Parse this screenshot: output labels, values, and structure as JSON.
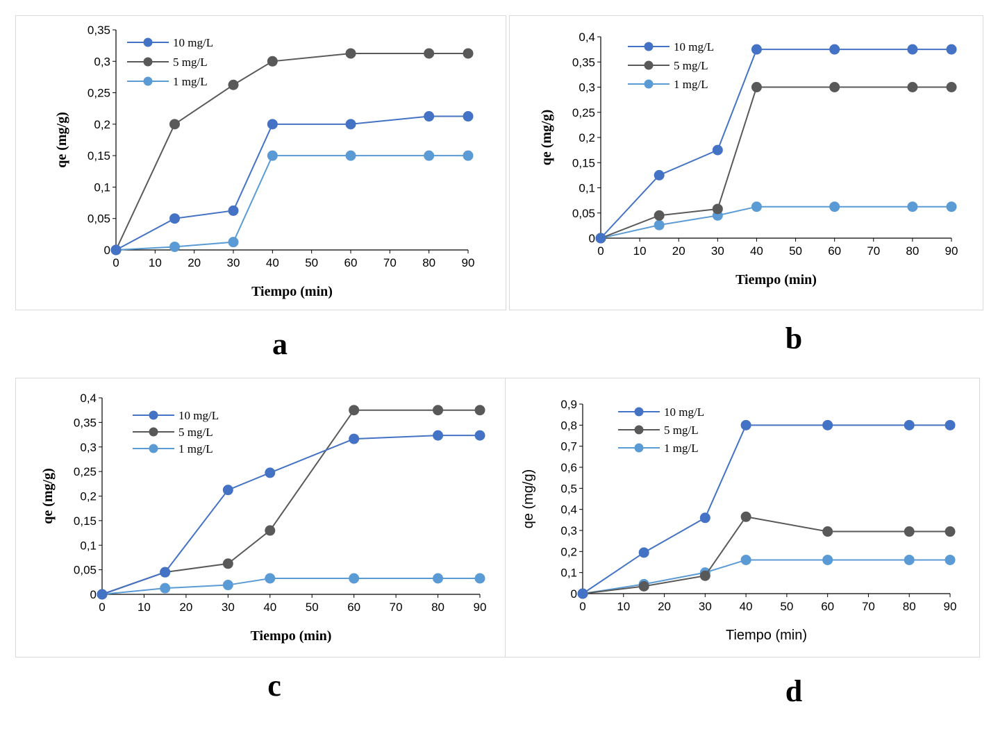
{
  "colors": {
    "series_10": "#4472c4",
    "series_5": "#595959",
    "series_1": "#5b9bd5",
    "axis": "#000000",
    "panel_border": "#d9d9d9"
  },
  "chart_data": [
    {
      "panel_letter": "a",
      "type": "line",
      "xlabel": "Tiempo (min)",
      "ylabel": "qe (mg/g)",
      "xlim": [
        0,
        90
      ],
      "x_ticks": [
        "0",
        "10",
        "20",
        "30",
        "40",
        "50",
        "60",
        "70",
        "80",
        "90"
      ],
      "ylim": [
        0,
        0.35
      ],
      "y_ticks": [
        "0",
        "0,05",
        "0,1",
        "0,15",
        "0,2",
        "0,25",
        "0,3",
        "0,35"
      ],
      "legend_position": "top-left",
      "grid": false,
      "series": [
        {
          "name": "10 mg/L",
          "x": [
            0,
            15,
            30,
            40,
            60,
            80,
            90
          ],
          "y": [
            0,
            0.05,
            0.0625,
            0.2,
            0.2,
            0.2125,
            0.2125
          ]
        },
        {
          "name": "5 mg/L",
          "x": [
            0,
            15,
            30,
            40,
            60,
            80,
            90
          ],
          "y": [
            0,
            0.2,
            0.2625,
            0.3,
            0.3125,
            0.3125,
            0.3125
          ]
        },
        {
          "name": "1 mg/L",
          "x": [
            0,
            15,
            30,
            40,
            60,
            80,
            90
          ],
          "y": [
            0,
            0.005,
            0.0125,
            0.15,
            0.15,
            0.15,
            0.15
          ]
        }
      ]
    },
    {
      "panel_letter": "b",
      "type": "line",
      "xlabel": "Tiempo (min)",
      "ylabel": "qe (mg/g)",
      "xlim": [
        0,
        90
      ],
      "x_ticks": [
        "0",
        "10",
        "20",
        "30",
        "40",
        "50",
        "60",
        "70",
        "80",
        "90"
      ],
      "ylim": [
        0,
        0.4
      ],
      "y_ticks": [
        "0",
        "0,05",
        "0,1",
        "0,15",
        "0,2",
        "0,25",
        "0,3",
        "0,35",
        "0,4"
      ],
      "legend_position": "top-left",
      "grid": false,
      "series": [
        {
          "name": "10 mg/L",
          "x": [
            0,
            15,
            30,
            40,
            60,
            80,
            90
          ],
          "y": [
            0,
            0.125,
            0.175,
            0.375,
            0.375,
            0.375,
            0.375
          ]
        },
        {
          "name": "5 mg/L",
          "x": [
            0,
            15,
            30,
            40,
            60,
            80,
            90
          ],
          "y": [
            0,
            0.045,
            0.058,
            0.3,
            0.3,
            0.3,
            0.3
          ]
        },
        {
          "name": "1 mg/L",
          "x": [
            0,
            15,
            30,
            40,
            60,
            80,
            90
          ],
          "y": [
            0,
            0.026,
            0.045,
            0.0625,
            0.0625,
            0.0625,
            0.0625
          ]
        }
      ]
    },
    {
      "panel_letter": "c",
      "type": "line",
      "xlabel": "Tiempo (min)",
      "ylabel": "qe (mg/g)",
      "xlim": [
        0,
        90
      ],
      "x_ticks": [
        "0",
        "10",
        "20",
        "30",
        "40",
        "50",
        "60",
        "70",
        "80",
        "90"
      ],
      "ylim": [
        0,
        0.4
      ],
      "y_ticks": [
        "0",
        "0,05",
        "0,1",
        "0,15",
        "0,2",
        "0,25",
        "0,3",
        "0,35",
        "0,4"
      ],
      "legend_position": "top-left",
      "grid": false,
      "series": [
        {
          "name": "10 mg/L",
          "x": [
            0,
            15,
            30,
            40,
            60,
            80,
            90
          ],
          "y": [
            0,
            0.045,
            0.2125,
            0.2475,
            0.3165,
            0.3235,
            0.3235
          ]
        },
        {
          "name": "5 mg/L",
          "x": [
            0,
            15,
            30,
            40,
            60,
            80,
            90
          ],
          "y": [
            0,
            0.045,
            0.0625,
            0.13,
            0.375,
            0.375,
            0.375
          ]
        },
        {
          "name": "1 mg/L",
          "x": [
            0,
            15,
            30,
            40,
            60,
            80,
            90
          ],
          "y": [
            0,
            0.0125,
            0.019,
            0.0325,
            0.0325,
            0.0325,
            0.0325
          ]
        }
      ]
    },
    {
      "panel_letter": "d",
      "type": "line",
      "xlabel": "Tiempo (min)",
      "ylabel": "qe (mg/g)",
      "xlim": [
        0,
        90
      ],
      "x_ticks": [
        "0",
        "10",
        "20",
        "30",
        "40",
        "50",
        "60",
        "70",
        "80",
        "90"
      ],
      "ylim": [
        0,
        0.9
      ],
      "y_ticks": [
        "0",
        "0,1",
        "0,2",
        "0,3",
        "0,4",
        "0,5",
        "0,6",
        "0,7",
        "0,8",
        "0,9"
      ],
      "legend_position": "top-left",
      "grid": false,
      "series": [
        {
          "name": "10 mg/L",
          "x": [
            0,
            15,
            30,
            40,
            60,
            80,
            90
          ],
          "y": [
            0,
            0.195,
            0.36,
            0.8,
            0.8,
            0.8,
            0.8
          ]
        },
        {
          "name": "5 mg/L",
          "x": [
            0,
            15,
            30,
            40,
            60,
            80,
            90
          ],
          "y": [
            0,
            0.035,
            0.085,
            0.365,
            0.295,
            0.295,
            0.295
          ]
        },
        {
          "name": "1 mg/L",
          "x": [
            0,
            15,
            30,
            40,
            60,
            80,
            90
          ],
          "y": [
            0,
            0.045,
            0.1,
            0.16,
            0.16,
            0.16,
            0.16
          ]
        }
      ]
    }
  ]
}
